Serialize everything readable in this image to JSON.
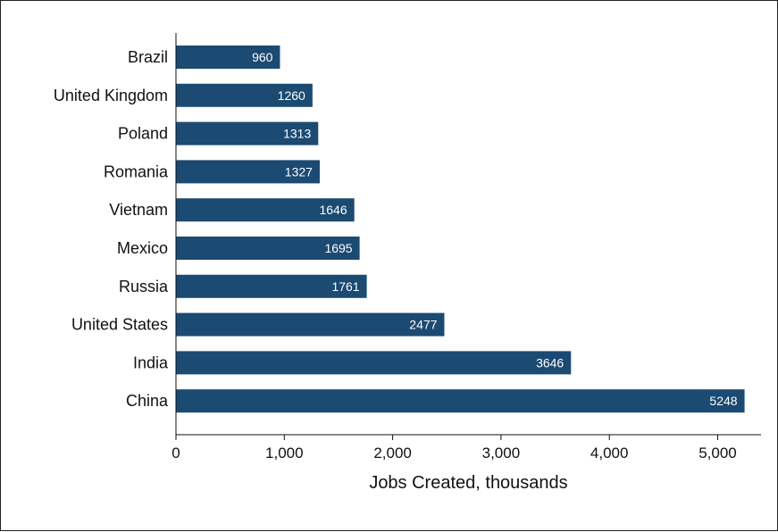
{
  "chart_data": {
    "type": "bar",
    "orientation": "horizontal",
    "categories": [
      "Brazil",
      "United Kingdom",
      "Poland",
      "Romania",
      "Vietnam",
      "Mexico",
      "Russia",
      "United States",
      "India",
      "China"
    ],
    "values": [
      960,
      1260,
      1313,
      1327,
      1646,
      1695,
      1761,
      2477,
      3646,
      5248
    ],
    "value_labels": [
      "960",
      "1260",
      "1313",
      "1327",
      "1646",
      "1695",
      "1761",
      "2477",
      "3646",
      "5248"
    ],
    "xlabel": "Jobs Created, thousands",
    "xlim": [
      0,
      5400
    ],
    "xticks": [
      0,
      1000,
      2000,
      3000,
      4000,
      5000
    ],
    "xtick_labels": [
      "0",
      "1,000",
      "2,000",
      "3,000",
      "4,000",
      "5,000"
    ],
    "bar_color": "#1b4a72",
    "grid": false,
    "legend": "none"
  }
}
